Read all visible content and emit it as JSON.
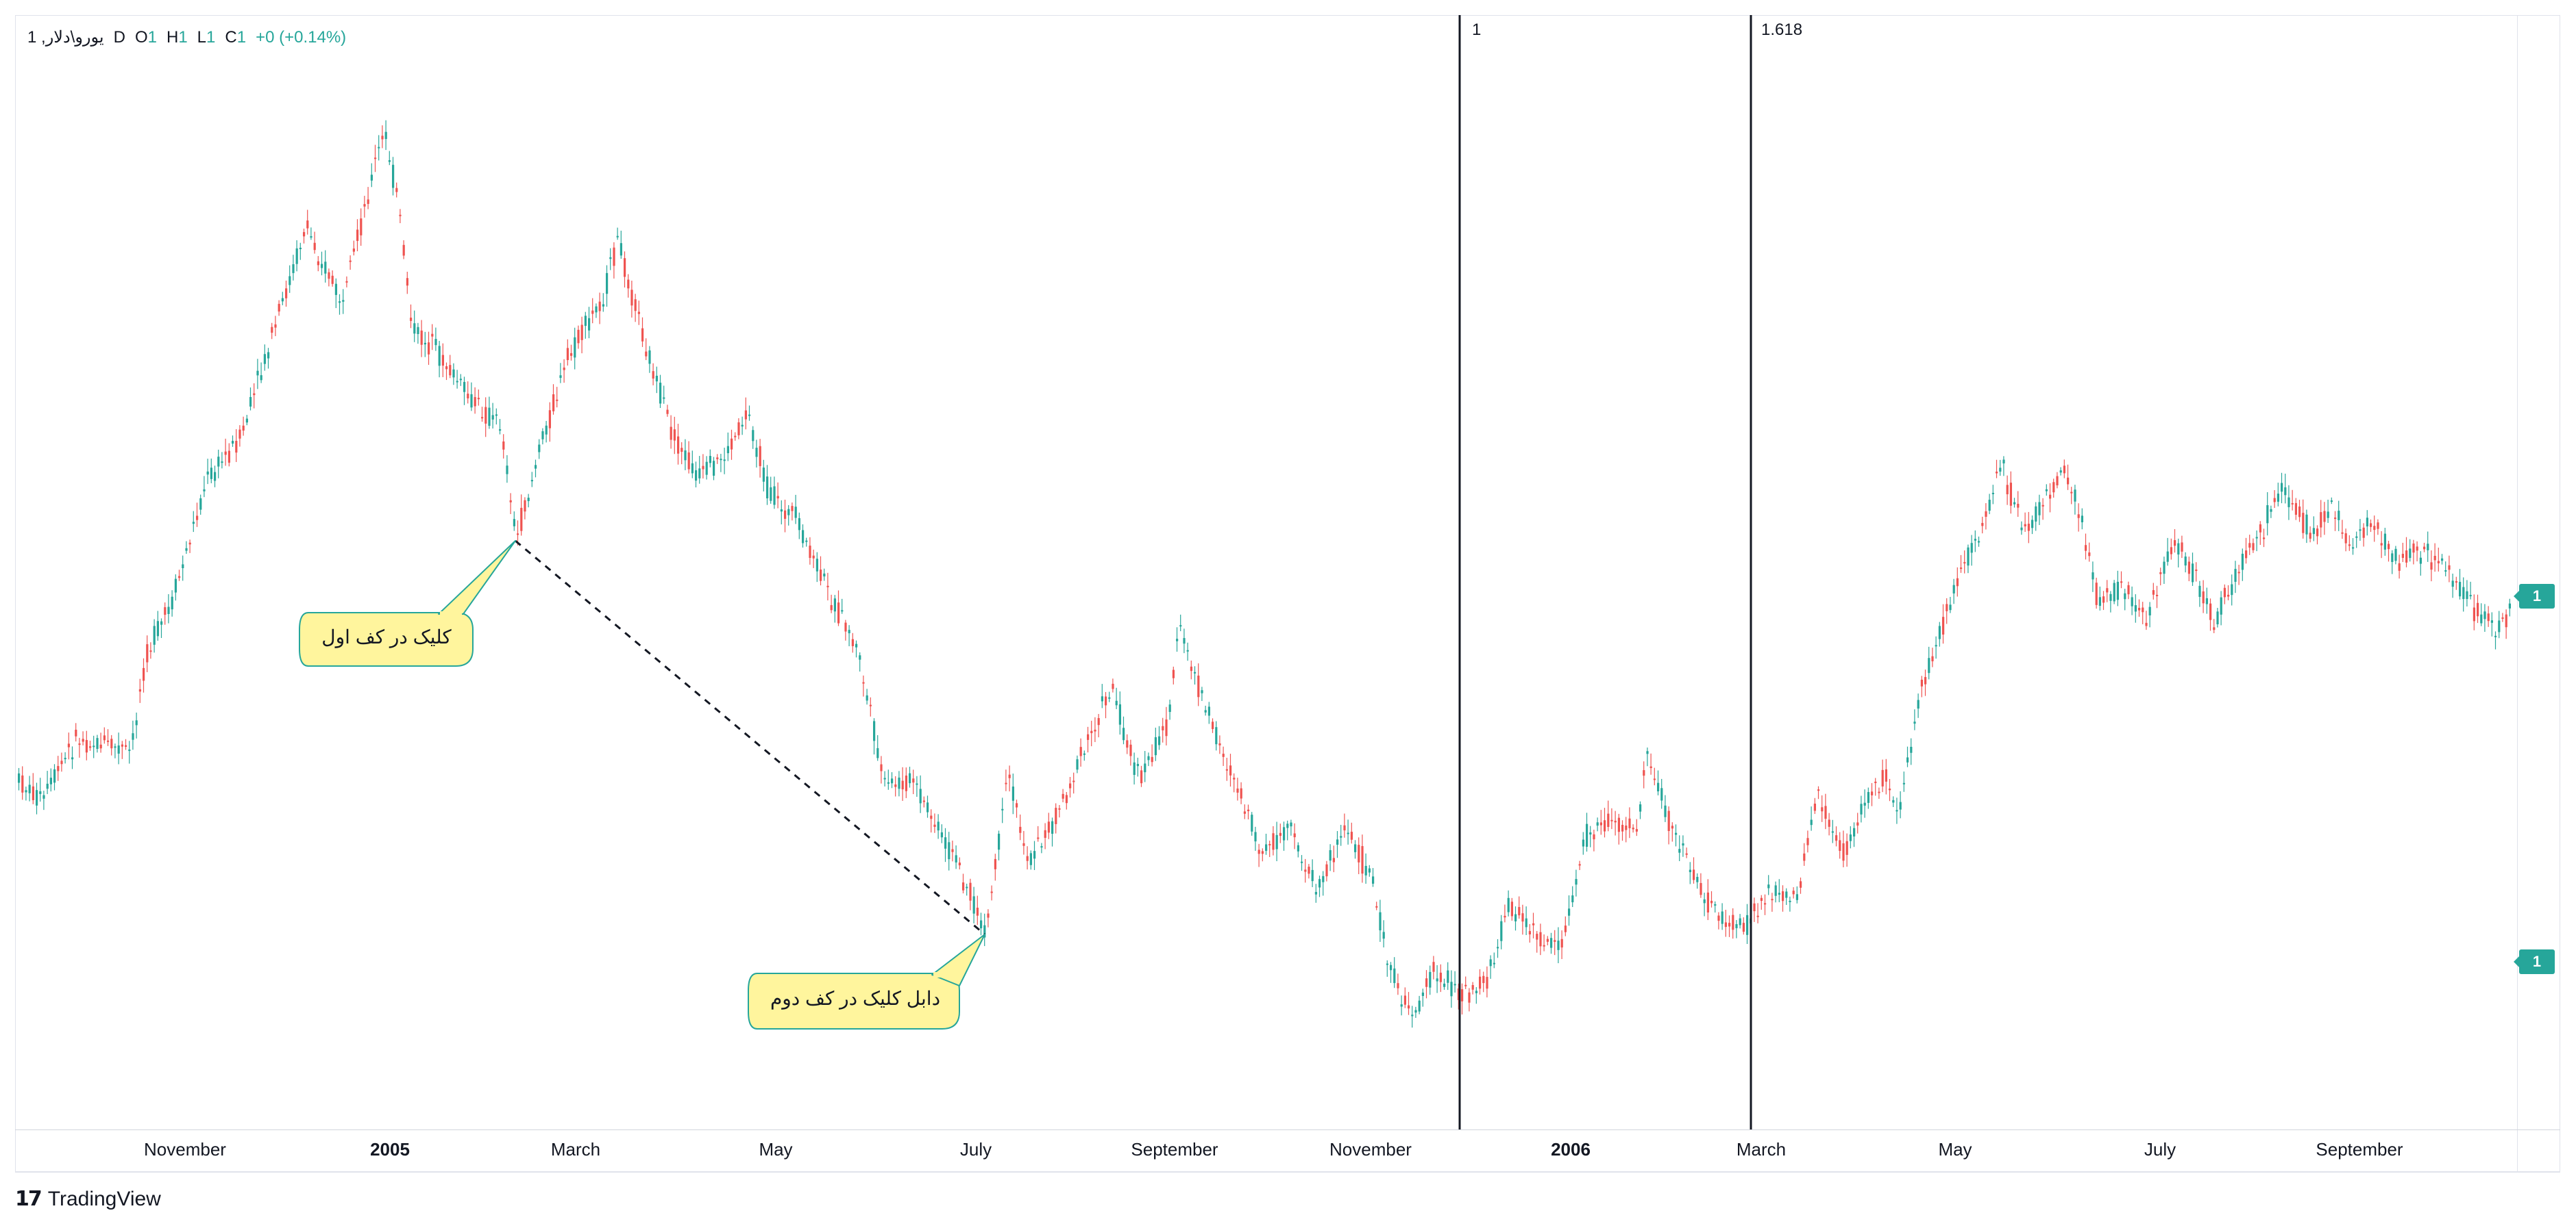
{
  "legend": {
    "symbol": "یورو\\دلار, 1",
    "interval": "D",
    "open_label": "O",
    "open_value": "1",
    "high_label": "H",
    "high_value": "1",
    "low_label": "L",
    "low_value": "1",
    "close_label": "C",
    "close_value": "1",
    "change": "+0 (+0.14%)"
  },
  "vertical_lines": {
    "first_label": "1",
    "second_label": "1.618"
  },
  "callouts": {
    "first": "کلیک در کف اول",
    "second": "دابل کلیک در کف دوم"
  },
  "price_axis": {
    "badge_top": "1",
    "badge_bottom": "1"
  },
  "time_axis": [
    {
      "label": "November",
      "bold": false
    },
    {
      "label": "2005",
      "bold": true
    },
    {
      "label": "March",
      "bold": false
    },
    {
      "label": "May",
      "bold": false
    },
    {
      "label": "July",
      "bold": false
    },
    {
      "label": "September",
      "bold": false
    },
    {
      "label": "November",
      "bold": false
    },
    {
      "label": "2006",
      "bold": true
    },
    {
      "label": "March",
      "bold": false
    },
    {
      "label": "May",
      "bold": false
    },
    {
      "label": "July",
      "bold": false
    },
    {
      "label": "September",
      "bold": false
    }
  ],
  "colors": {
    "up": "#26a69a",
    "down": "#ef5350",
    "callout_fill": "#fff59d",
    "callout_border": "#26a69a"
  },
  "branding": {
    "name": "TradingView",
    "logo_icon": "tradingview-logo-icon"
  }
}
